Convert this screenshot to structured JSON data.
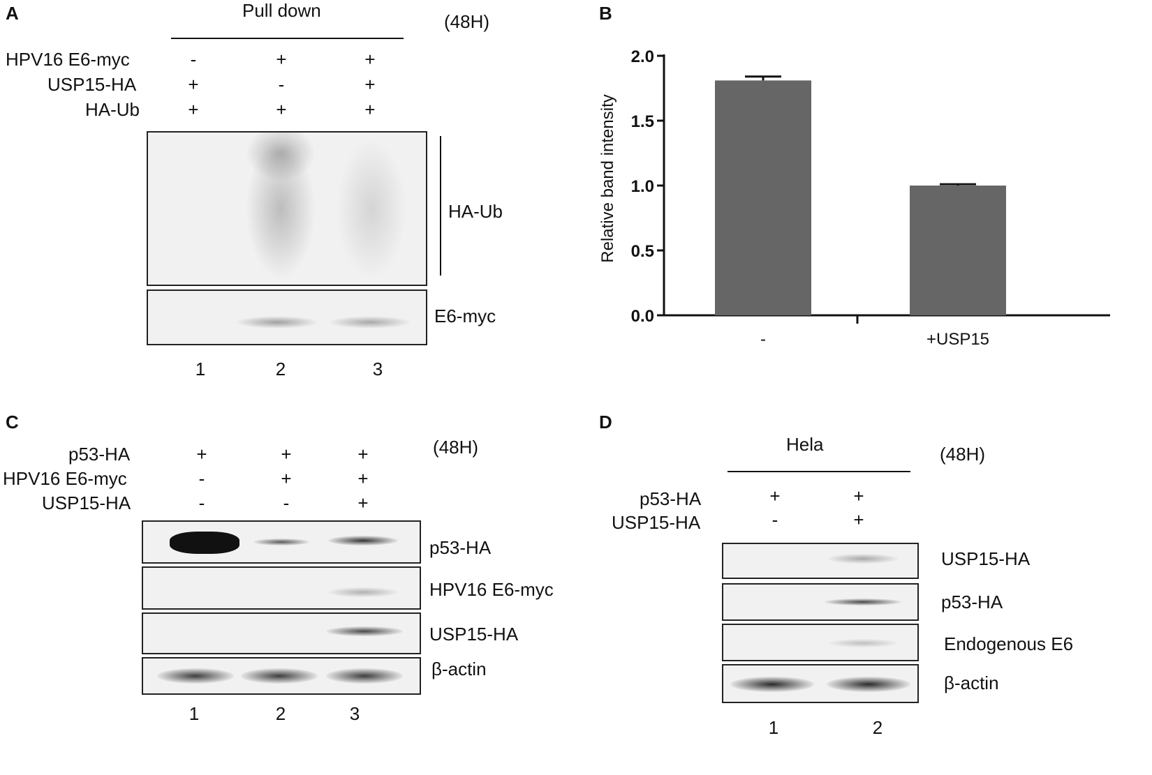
{
  "panels": {
    "A": {
      "letter": "A",
      "header": "Pull down",
      "time": "(48H)",
      "rows": [
        {
          "label": "HPV16 E6-myc",
          "signs": [
            "-",
            "+",
            "+"
          ]
        },
        {
          "label": "USP15-HA",
          "signs": [
            "+",
            "-",
            "+"
          ]
        },
        {
          "label": "HA-Ub",
          "signs": [
            "+",
            "+",
            "+"
          ]
        }
      ],
      "blots": [
        "HA-Ub",
        "E6-myc"
      ],
      "lanes": [
        "1",
        "2",
        "3"
      ]
    },
    "B": {
      "letter": "B"
    },
    "C": {
      "letter": "C",
      "time": "(48H)",
      "rows": [
        {
          "label": "p53-HA",
          "signs": [
            "+",
            "+",
            "+"
          ]
        },
        {
          "label": "HPV16 E6-myc",
          "signs": [
            "-",
            "+",
            "+"
          ]
        },
        {
          "label": "USP15-HA",
          "signs": [
            "-",
            "-",
            "+"
          ]
        }
      ],
      "blots": [
        "p53-HA",
        "HPV16 E6-myc",
        "USP15-HA",
        "β-actin"
      ],
      "lanes": [
        "1",
        "2",
        "3"
      ]
    },
    "D": {
      "letter": "D",
      "header": "Hela",
      "time": "(48H)",
      "rows": [
        {
          "label": "p53-HA",
          "signs": [
            "+",
            "+"
          ]
        },
        {
          "label": "USP15-HA",
          "signs": [
            "-",
            "+"
          ]
        }
      ],
      "blots": [
        "USP15-HA",
        "p53-HA",
        "Endogenous E6",
        "β-actin"
      ],
      "lanes": [
        "1",
        "2"
      ]
    }
  },
  "chart_data": {
    "type": "bar",
    "categories": [
      "-",
      "+USP15"
    ],
    "values": [
      1.81,
      1.0
    ],
    "errors": [
      0.03,
      0.01
    ],
    "ylabel": "Relative band intensity",
    "xlabel": "",
    "ylim": [
      0,
      2.0
    ],
    "yticks": [
      "0.0",
      "0.5",
      "1.0",
      "1.5",
      "2.0"
    ],
    "bar_color": "#666666"
  }
}
